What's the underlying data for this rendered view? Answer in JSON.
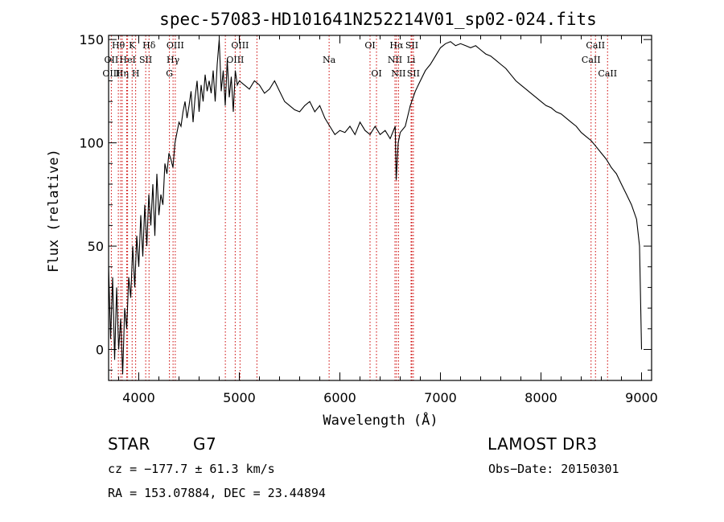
{
  "chart_data": {
    "type": "line",
    "title": "spec-57083-HD101641N252214V01_sp02-024.fits",
    "xlabel": "Wavelength (Å)",
    "ylabel": "Flux (relative)",
    "xlim": [
      3700,
      9100
    ],
    "ylim": [
      -15,
      152
    ],
    "xticks": [
      4000,
      5000,
      6000,
      7000,
      8000,
      9000
    ],
    "yticks": [
      0,
      50,
      100,
      150
    ],
    "grid": false,
    "series": [
      {
        "x": [
          3700,
          3720,
          3740,
          3760,
          3780,
          3800,
          3820,
          3840,
          3860,
          3880,
          3900,
          3920,
          3940,
          3960,
          3980,
          4000,
          4020,
          4040,
          4060,
          4080,
          4100,
          4120,
          4140,
          4160,
          4180,
          4200,
          4220,
          4240,
          4260,
          4280,
          4300,
          4320,
          4340,
          4360,
          4380,
          4400,
          4420,
          4440,
          4460,
          4480,
          4500,
          4520,
          4540,
          4560,
          4580,
          4600,
          4620,
          4640,
          4660,
          4680,
          4700,
          4720,
          4740,
          4760,
          4780,
          4800,
          4820,
          4840,
          4860,
          4880,
          4900,
          4920,
          4940,
          4960,
          4980,
          5000,
          5050,
          5100,
          5150,
          5200,
          5250,
          5300,
          5350,
          5400,
          5450,
          5500,
          5550,
          5600,
          5650,
          5700,
          5750,
          5800,
          5850,
          5900,
          5950,
          6000,
          6050,
          6100,
          6150,
          6200,
          6250,
          6300,
          6350,
          6400,
          6450,
          6500,
          6550,
          6560,
          6580,
          6600,
          6650,
          6700,
          6750,
          6800,
          6850,
          6900,
          6950,
          7000,
          7050,
          7100,
          7150,
          7200,
          7250,
          7300,
          7350,
          7400,
          7450,
          7500,
          7550,
          7600,
          7650,
          7700,
          7750,
          7800,
          7850,
          7900,
          7950,
          8000,
          8050,
          8100,
          8150,
          8200,
          8250,
          8300,
          8350,
          8400,
          8450,
          8500,
          8550,
          8600,
          8650,
          8700,
          8750,
          8800,
          8850,
          8900,
          8950,
          8980,
          9000
        ],
        "y": [
          40,
          5,
          35,
          -5,
          30,
          0,
          15,
          -12,
          20,
          10,
          35,
          25,
          50,
          30,
          55,
          40,
          65,
          45,
          70,
          50,
          75,
          60,
          80,
          55,
          85,
          65,
          75,
          70,
          90,
          85,
          95,
          92,
          88,
          100,
          105,
          110,
          108,
          115,
          120,
          112,
          118,
          125,
          110,
          122,
          130,
          115,
          128,
          120,
          133,
          125,
          130,
          124,
          135,
          120,
          138,
          150,
          125,
          135,
          118,
          140,
          122,
          132,
          115,
          135,
          128,
          130,
          128,
          126,
          130,
          128,
          124,
          126,
          130,
          125,
          120,
          118,
          116,
          115,
          118,
          120,
          115,
          118,
          112,
          108,
          104,
          106,
          105,
          108,
          104,
          110,
          106,
          104,
          108,
          104,
          106,
          102,
          108,
          82,
          100,
          105,
          108,
          118,
          125,
          130,
          135,
          138,
          142,
          146,
          148,
          149,
          147,
          148,
          147,
          146,
          147,
          145,
          143,
          142,
          140,
          138,
          136,
          133,
          130,
          128,
          126,
          124,
          122,
          120,
          118,
          117,
          115,
          114,
          112,
          110,
          108,
          105,
          103,
          101,
          98,
          95,
          92,
          88,
          85,
          80,
          75,
          70,
          63,
          50,
          0
        ]
      }
    ],
    "spectral_lines": [
      {
        "label": "Hθ",
        "x": 3797,
        "row": 0
      },
      {
        "label": "OII",
        "x": 3727,
        "row": 1
      },
      {
        "label": "OIII",
        "x": 3727,
        "row": 2
      },
      {
        "label": "K",
        "x": 3934,
        "row": 0
      },
      {
        "label": "HeI",
        "x": 3889,
        "row": 1
      },
      {
        "label": "Hη",
        "x": 3835,
        "row": 2
      },
      {
        "label": "Hδ",
        "x": 4102,
        "row": 0
      },
      {
        "label": "SII",
        "x": 4069,
        "row": 1
      },
      {
        "label": "H",
        "x": 3969,
        "row": 2
      },
      {
        "label": "OIII",
        "x": 4363,
        "row": 0
      },
      {
        "label": "Hγ",
        "x": 4341,
        "row": 1
      },
      {
        "label": "G",
        "x": 4305,
        "row": 2
      },
      {
        "label": "OIII",
        "x": 5007,
        "row": 0
      },
      {
        "label": "OIII",
        "x": 4959,
        "row": 1
      },
      {
        "label": "Na",
        "x": 5893,
        "row": 1
      },
      {
        "label": "OI",
        "x": 6300,
        "row": 0
      },
      {
        "label": "OI",
        "x": 6364,
        "row": 2
      },
      {
        "label": "Hα",
        "x": 6563,
        "row": 0
      },
      {
        "label": "SII",
        "x": 6716,
        "row": 0
      },
      {
        "label": "NII",
        "x": 6548,
        "row": 1
      },
      {
        "label": "Li",
        "x": 6708,
        "row": 1
      },
      {
        "label": "NII",
        "x": 6583,
        "row": 2
      },
      {
        "label": "SII",
        "x": 6731,
        "row": 2
      },
      {
        "label": "CaII",
        "x": 8542,
        "row": 0
      },
      {
        "label": "CaII",
        "x": 8498,
        "row": 1
      },
      {
        "label": "CaII",
        "x": 8662,
        "row": 2
      }
    ],
    "extra_line_markers": [
      4861,
      5175,
      3820,
      3880
    ]
  },
  "info": {
    "class_label": "STAR",
    "subclass": "G7",
    "survey": "LAMOST DR3",
    "cz_text": "cz = −177.7 ± 61.3 km/s",
    "obs_date_text": "Obs−Date: 20150301",
    "radec_text": "RA = 153.07884, DEC =  23.44894"
  },
  "colors": {
    "line_marker": "#cc0000",
    "spectrum": "#000000"
  }
}
